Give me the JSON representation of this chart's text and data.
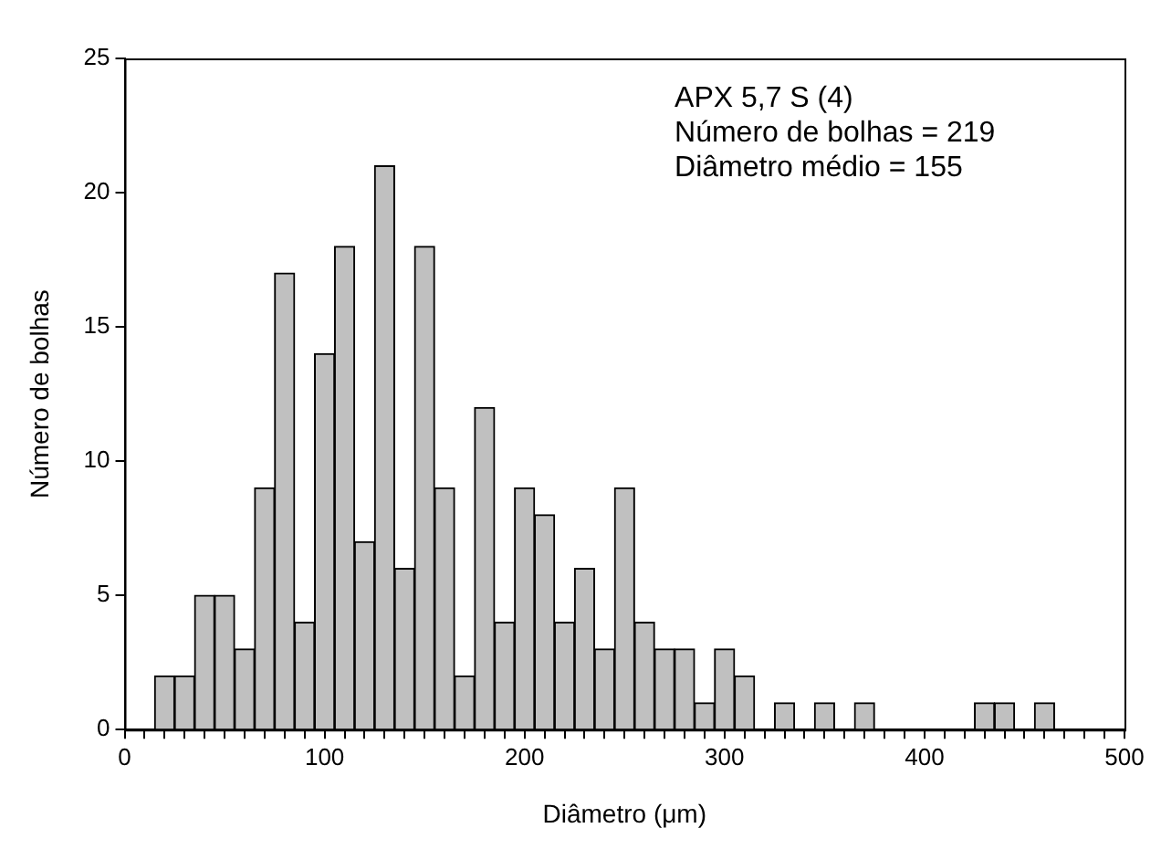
{
  "chart_data": {
    "type": "histogram",
    "xlabel": "Diâmetro (μm)",
    "ylabel": "Número de bolhas",
    "bins": [
      15,
      25,
      35,
      45,
      55,
      65,
      75,
      85,
      95,
      105,
      115,
      125,
      135,
      145,
      155,
      165,
      175,
      185,
      195,
      205,
      215,
      225,
      235,
      245,
      255,
      265,
      275,
      285,
      295,
      305,
      315,
      325,
      335,
      345,
      355,
      365,
      375,
      385,
      395,
      405,
      415,
      425,
      435,
      445,
      455,
      465
    ],
    "values": [
      2,
      2,
      5,
      5,
      3,
      9,
      17,
      4,
      14,
      18,
      7,
      21,
      6,
      18,
      9,
      2,
      12,
      4,
      9,
      8,
      4,
      6,
      3,
      9,
      4,
      3,
      3,
      1,
      3,
      2,
      0,
      1,
      0,
      1,
      0,
      1,
      0,
      0,
      0,
      0,
      0,
      1,
      1,
      0,
      1
    ],
    "color": "#c0c0c0",
    "xlim": [
      0,
      500
    ],
    "xticks": [
      0,
      {
        "value": 10,
        "label": null
      },
      {
        "value": 20,
        "label": null
      },
      {
        "value": 30,
        "label": null
      },
      {
        "value": 40,
        "label": null
      },
      {
        "value": 50,
        "label": null
      },
      {
        "value": 60,
        "label": null
      },
      {
        "value": 70,
        "label": null
      },
      {
        "value": 80,
        "label": null
      },
      {
        "value": 90,
        "label": null
      },
      100,
      {
        "value": 110,
        "label": null
      },
      {
        "value": 120,
        "label": null
      },
      {
        "value": 130,
        "label": null
      },
      {
        "value": 140,
        "label": null
      },
      {
        "value": 150,
        "label": null
      },
      {
        "value": 160,
        "label": null
      },
      {
        "value": 170,
        "label": null
      },
      {
        "value": 180,
        "label": null
      },
      {
        "value": 190,
        "label": null
      },
      200,
      {
        "value": 210,
        "label": null
      },
      {
        "value": 220,
        "label": null
      },
      {
        "value": 230,
        "label": null
      },
      {
        "value": 240,
        "label": null
      },
      {
        "value": 250,
        "label": null
      },
      {
        "value": 260,
        "label": null
      },
      {
        "value": 270,
        "label": null
      },
      {
        "value": 280,
        "label": null
      },
      {
        "value": 290,
        "label": null
      },
      300,
      {
        "value": 310,
        "label": null
      },
      {
        "value": 320,
        "label": null
      },
      {
        "value": 330,
        "label": null
      },
      {
        "value": 340,
        "label": null
      },
      {
        "value": 350,
        "label": null
      },
      {
        "value": 360,
        "label": null
      },
      {
        "value": 370,
        "label": null
      },
      {
        "value": 380,
        "label": null
      },
      {
        "value": 390,
        "label": null
      },
      400,
      {
        "value": 410,
        "label": null
      },
      {
        "value": 420,
        "label": null
      },
      {
        "value": 430,
        "label": null
      },
      {
        "value": 440,
        "label": null
      },
      {
        "value": 450,
        "label": null
      },
      {
        "value": 460,
        "label": null
      },
      {
        "value": 470,
        "label": null
      },
      {
        "value": 480,
        "label": null
      },
      {
        "value": 490,
        "label": null
      },
      500
    ],
    "ylim": [
      0,
      25
    ],
    "yticks": [
      0,
      5,
      10,
      15,
      20,
      25
    ],
    "grid": false,
    "legend": false,
    "annotations": [
      "APX 5,7 S (4)",
      "Número de bolhas = 219",
      "Diâmetro médio = 155"
    ]
  }
}
